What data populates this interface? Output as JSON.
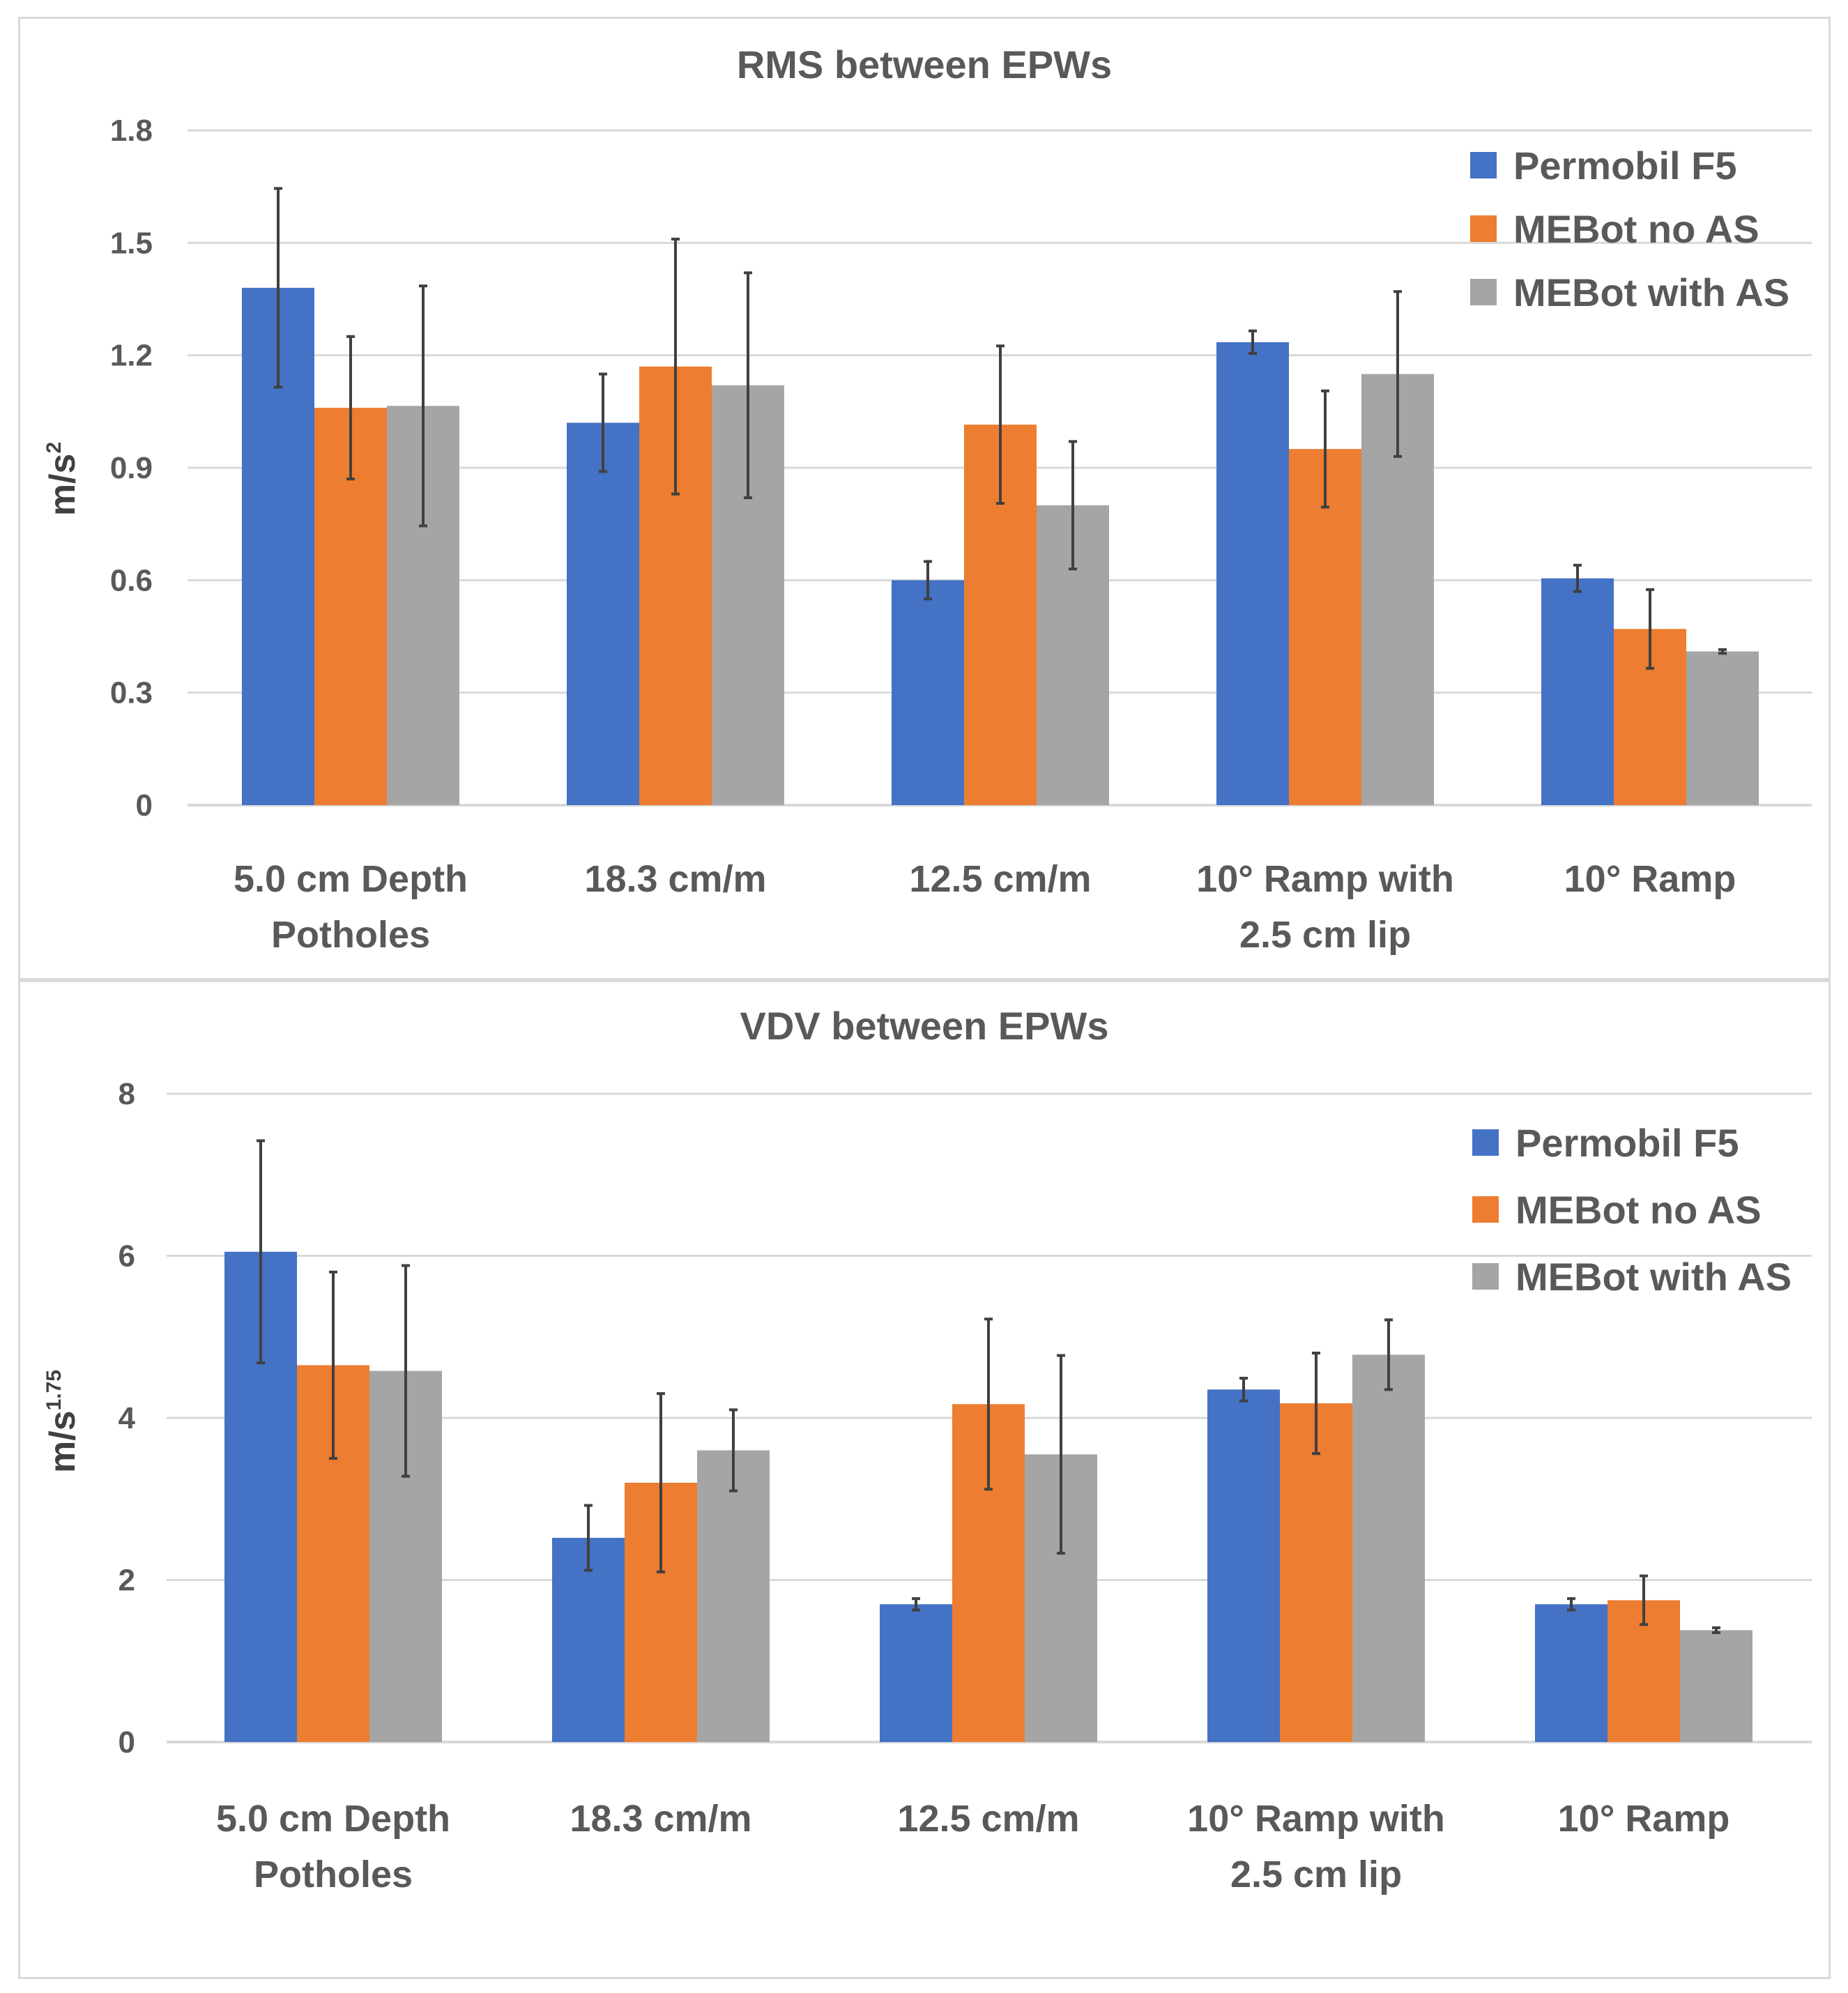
{
  "chart_data": [
    {
      "type": "bar",
      "title": "RMS between EPWs",
      "ylabel": "m/s",
      "ylabel_sup": "2",
      "categories": [
        [
          "5.0 cm Depth",
          "Potholes"
        ],
        [
          "18.3 cm/m"
        ],
        [
          "12.5 cm/m"
        ],
        [
          "10° Ramp with",
          "2.5 cm lip"
        ],
        [
          "10° Ramp"
        ]
      ],
      "ylim": [
        0,
        1.8
      ],
      "yticks": [
        "0",
        "0.3",
        "0.6",
        "0.9",
        "1.2",
        "1.5",
        "1.8"
      ],
      "legend_position": "top-right",
      "series": [
        {
          "name": "Permobil F5",
          "color": "#4472C4",
          "values": [
            1.38,
            1.02,
            0.6,
            1.235,
            0.605
          ],
          "errors": [
            0.265,
            0.13,
            0.05,
            0.03,
            0.035
          ]
        },
        {
          "name": "MEBot no AS",
          "color": "#ED7D31",
          "values": [
            1.06,
            1.17,
            1.015,
            0.95,
            0.47
          ],
          "errors": [
            0.19,
            0.34,
            0.21,
            0.155,
            0.105
          ]
        },
        {
          "name": "MEBot with AS",
          "color": "#A5A5A5",
          "values": [
            1.065,
            1.12,
            0.8,
            1.15,
            0.41
          ],
          "errors": [
            0.32,
            0.3,
            0.17,
            0.22,
            0.005
          ]
        }
      ]
    },
    {
      "type": "bar",
      "title": "VDV between EPWs",
      "ylabel": "m/s",
      "ylabel_sup": "1.75",
      "categories": [
        [
          "5.0 cm Depth",
          "Potholes"
        ],
        [
          "18.3 cm/m"
        ],
        [
          "12.5 cm/m"
        ],
        [
          "10° Ramp with",
          "2.5 cm lip"
        ],
        [
          "10° Ramp"
        ]
      ],
      "ylim": [
        0,
        8
      ],
      "yticks": [
        "0",
        "2",
        "4",
        "6",
        "8"
      ],
      "legend_position": "top-right",
      "series": [
        {
          "name": "Permobil F5",
          "color": "#4472C4",
          "values": [
            6.05,
            2.52,
            1.7,
            4.35,
            1.7
          ],
          "errors": [
            1.37,
            0.4,
            0.07,
            0.14,
            0.07
          ]
        },
        {
          "name": "MEBot no AS",
          "color": "#ED7D31",
          "values": [
            4.65,
            3.2,
            4.17,
            4.18,
            1.75
          ],
          "errors": [
            1.15,
            1.1,
            1.05,
            0.62,
            0.3
          ]
        },
        {
          "name": "MEBot with AS",
          "color": "#A5A5A5",
          "values": [
            4.58,
            3.6,
            3.55,
            4.78,
            1.38
          ],
          "errors": [
            1.3,
            0.5,
            1.22,
            0.43,
            0.03
          ]
        }
      ]
    }
  ]
}
